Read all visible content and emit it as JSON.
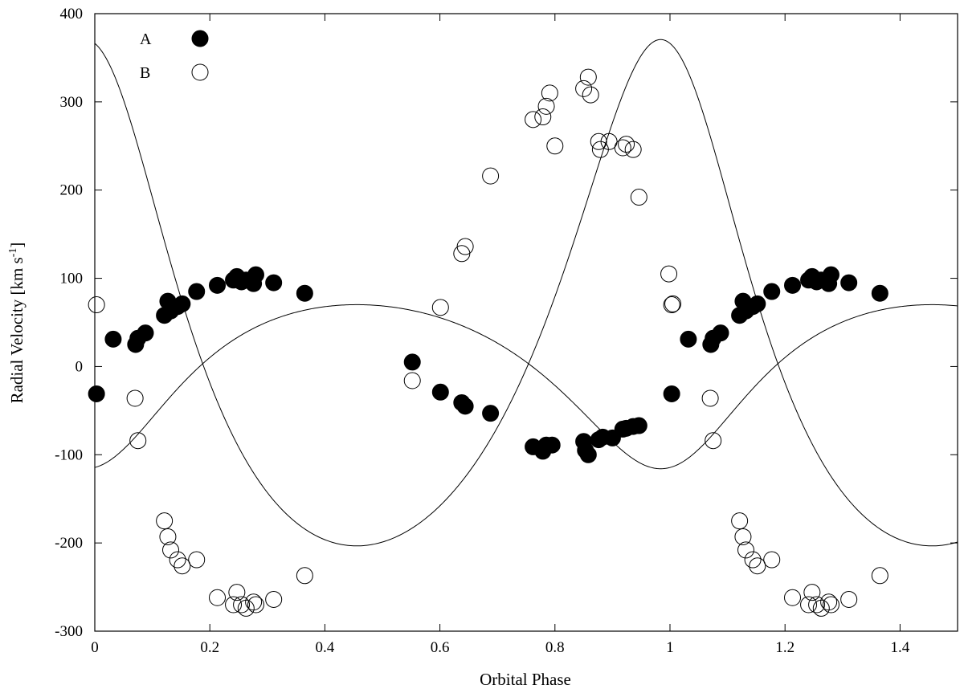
{
  "chart_data": {
    "type": "scatter",
    "xlabel": "Orbital Phase",
    "ylabel": "Radial Velocity [km s",
    "ylabel_sup": "-1",
    "ylabel_close": "]",
    "xlim": [
      0,
      1.5
    ],
    "ylim": [
      -300,
      400
    ],
    "xticks": [
      0,
      0.2,
      0.4,
      0.6,
      0.8,
      1,
      1.2,
      1.4
    ],
    "xtick_labels": [
      "0",
      "0.2",
      "0.4",
      "0.6",
      "0.8",
      "1",
      "1.2",
      "1.4"
    ],
    "yticks": [
      -300,
      -200,
      -100,
      0,
      100,
      200,
      300,
      400
    ],
    "ytick_labels": [
      "-300",
      "-200",
      "-100",
      "0",
      "100",
      "200",
      "300",
      "400"
    ],
    "grid": false,
    "legend_position": "top-left",
    "series": [
      {
        "name": "A",
        "marker": "filled-circle",
        "color": "#000000",
        "x": [
          0.003,
          0.032,
          0.071,
          0.075,
          0.088,
          0.121,
          0.127,
          0.132,
          0.144,
          0.152,
          0.177,
          0.213,
          0.241,
          0.247,
          0.255,
          0.263,
          0.276,
          0.28,
          0.311,
          0.365,
          0.552,
          0.601,
          0.638,
          0.644,
          0.688,
          0.762,
          0.779,
          0.785,
          0.795,
          0.85,
          0.853,
          0.858,
          0.876,
          0.883,
          0.9,
          0.918,
          0.924,
          0.936,
          0.946
        ],
        "y": [
          -31,
          31,
          25,
          32,
          38,
          58,
          74,
          63,
          68,
          71,
          85,
          92,
          98,
          102,
          96,
          98,
          94,
          104,
          95,
          83,
          5,
          -29,
          -41,
          -45,
          -53,
          -91,
          -96,
          -89,
          -89,
          -85,
          -95,
          -100,
          -83,
          -80,
          -81,
          -71,
          -70,
          -68,
          -67
        ]
      },
      {
        "name": "B",
        "marker": "open-circle",
        "color": "#000000",
        "x": [
          0.003,
          0.07,
          0.075,
          0.121,
          0.127,
          0.132,
          0.144,
          0.152,
          0.177,
          0.213,
          0.241,
          0.247,
          0.255,
          0.263,
          0.276,
          0.28,
          0.311,
          0.365,
          0.552,
          0.601,
          0.638,
          0.644,
          0.688,
          0.762,
          0.779,
          0.785,
          0.791,
          0.8,
          0.85,
          0.858,
          0.862,
          0.876,
          0.879,
          0.894,
          0.918,
          0.924,
          0.936,
          0.946,
          0.998,
          1.005
        ],
        "y": [
          70,
          -36,
          -84,
          -175,
          -193,
          -208,
          -219,
          -226,
          -219,
          -262,
          -270,
          -256,
          -270,
          -274,
          -267,
          -270,
          -264,
          -237,
          -16,
          67,
          128,
          136,
          216,
          280,
          283,
          295,
          310,
          250,
          315,
          328,
          308,
          255,
          246,
          255,
          248,
          252,
          246,
          192,
          105,
          71
        ]
      }
    ],
    "fits": [
      {
        "series": "A",
        "type": "keplerian-fit",
        "K": 93,
        "gamma": 0,
        "e": 0.25,
        "omega_deg": 190,
        "T0_phase": 0.0
      },
      {
        "series": "B",
        "type": "keplerian-fit",
        "K": 287,
        "gamma": 13,
        "e": 0.25,
        "omega_deg": 10,
        "T0_phase": 0.0
      }
    ]
  }
}
